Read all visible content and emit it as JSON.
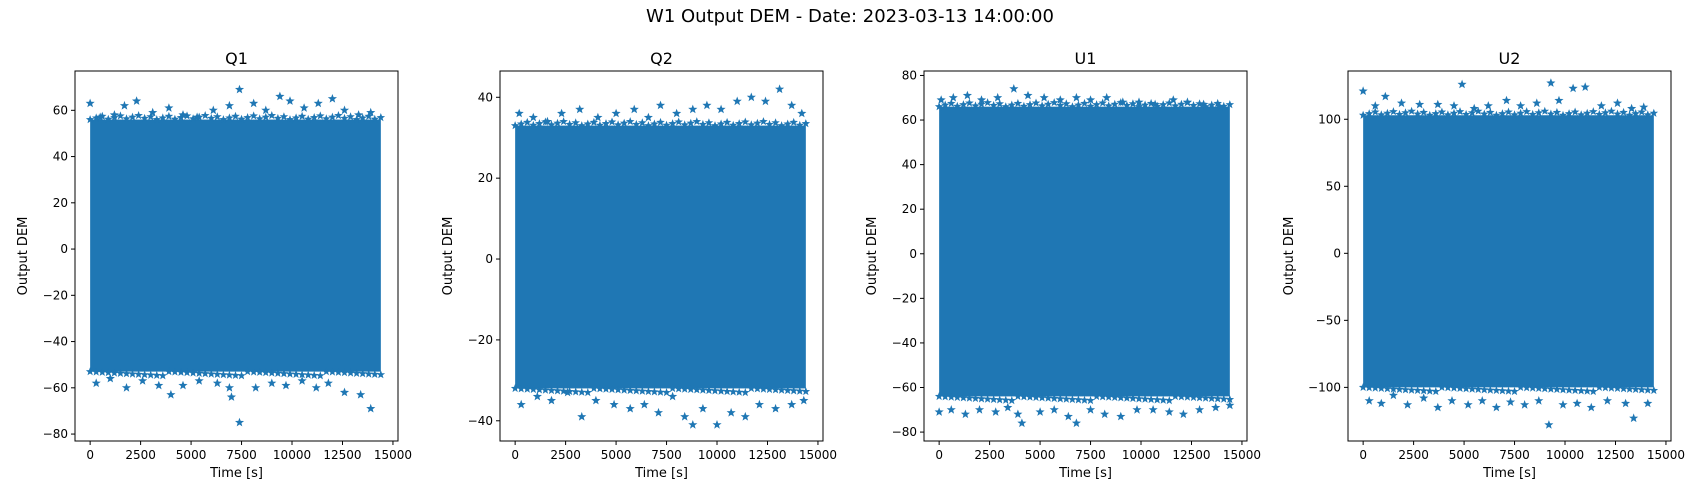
{
  "figure": {
    "title": "W1 Output DEM - Date: 2023-03-13 14:00:00"
  },
  "style": {
    "marker_color": "#1f77b4",
    "marker": "star"
  },
  "chart_data": [
    {
      "type": "scatter",
      "title": "Q1",
      "xlabel": "Time [s]",
      "ylabel": "Output DEM",
      "xlim": [
        -750,
        15250
      ],
      "ylim": [
        -83,
        77
      ],
      "xticks": [
        0,
        2500,
        5000,
        7500,
        10000,
        12500,
        15000
      ],
      "yticks": [
        -80,
        -60,
        -40,
        -20,
        0,
        20,
        40,
        60
      ],
      "time_range": [
        0,
        14400
      ],
      "band": {
        "upper": 56,
        "lower": -53
      },
      "grid": false,
      "outliers": [
        [
          0,
          63
        ],
        [
          500,
          57
        ],
        [
          1200,
          58
        ],
        [
          1700,
          62
        ],
        [
          2300,
          64
        ],
        [
          3100,
          59
        ],
        [
          3900,
          61
        ],
        [
          4600,
          58
        ],
        [
          5300,
          57
        ],
        [
          6100,
          60
        ],
        [
          6900,
          62
        ],
        [
          7400,
          69
        ],
        [
          8100,
          63
        ],
        [
          8700,
          60
        ],
        [
          9400,
          66
        ],
        [
          9900,
          64
        ],
        [
          10600,
          61
        ],
        [
          11300,
          63
        ],
        [
          12000,
          65
        ],
        [
          12600,
          60
        ],
        [
          13300,
          58
        ],
        [
          13900,
          59
        ],
        [
          300,
          -58
        ],
        [
          1000,
          -56
        ],
        [
          1800,
          -60
        ],
        [
          2600,
          -57
        ],
        [
          3400,
          -59
        ],
        [
          4000,
          -63
        ],
        [
          4600,
          -59
        ],
        [
          5400,
          -57
        ],
        [
          6300,
          -58
        ],
        [
          6900,
          -60
        ],
        [
          7000,
          -64
        ],
        [
          7400,
          -75
        ],
        [
          8200,
          -60
        ],
        [
          9000,
          -58
        ],
        [
          9700,
          -59
        ],
        [
          10500,
          -57
        ],
        [
          11200,
          -60
        ],
        [
          11800,
          -58
        ],
        [
          12600,
          -62
        ],
        [
          13400,
          -63
        ],
        [
          13900,
          -69
        ]
      ]
    },
    {
      "type": "scatter",
      "title": "Q2",
      "xlabel": "Time [s]",
      "ylabel": "Output DEM",
      "xlim": [
        -750,
        15250
      ],
      "ylim": [
        -45,
        46.5
      ],
      "xticks": [
        0,
        2500,
        5000,
        7500,
        10000,
        12500,
        15000
      ],
      "yticks": [
        -40,
        -20,
        0,
        20,
        40
      ],
      "time_range": [
        0,
        14400
      ],
      "band": {
        "upper": 33,
        "lower": -32
      },
      "grid": false,
      "outliers": [
        [
          200,
          36
        ],
        [
          900,
          35
        ],
        [
          1600,
          34
        ],
        [
          2300,
          36
        ],
        [
          3200,
          37
        ],
        [
          4100,
          35
        ],
        [
          5000,
          36
        ],
        [
          5900,
          37
        ],
        [
          6600,
          35
        ],
        [
          7200,
          38
        ],
        [
          8000,
          36
        ],
        [
          8800,
          37
        ],
        [
          9500,
          38
        ],
        [
          10200,
          37
        ],
        [
          11000,
          39
        ],
        [
          11700,
          40
        ],
        [
          12400,
          39
        ],
        [
          13100,
          42
        ],
        [
          13700,
          38
        ],
        [
          14200,
          36
        ],
        [
          300,
          -36
        ],
        [
          1100,
          -34
        ],
        [
          1800,
          -35
        ],
        [
          2600,
          -33
        ],
        [
          3300,
          -39
        ],
        [
          4000,
          -35
        ],
        [
          4900,
          -36
        ],
        [
          5700,
          -37
        ],
        [
          6400,
          -36
        ],
        [
          7100,
          -38
        ],
        [
          7800,
          -34
        ],
        [
          8400,
          -39
        ],
        [
          8800,
          -41
        ],
        [
          9300,
          -37
        ],
        [
          10000,
          -41
        ],
        [
          10700,
          -38
        ],
        [
          11400,
          -39
        ],
        [
          12100,
          -36
        ],
        [
          12900,
          -37
        ],
        [
          13700,
          -36
        ],
        [
          14300,
          -35
        ]
      ]
    },
    {
      "type": "scatter",
      "title": "U1",
      "xlabel": "Time [s]",
      "ylabel": "Output DEM",
      "xlim": [
        -750,
        15250
      ],
      "ylim": [
        -84,
        82
      ],
      "xticks": [
        0,
        2500,
        5000,
        7500,
        10000,
        12500,
        15000
      ],
      "yticks": [
        -80,
        -60,
        -40,
        -20,
        0,
        20,
        40,
        60,
        80
      ],
      "time_range": [
        0,
        14400
      ],
      "band": {
        "upper": 66,
        "lower": -64
      },
      "grid": false,
      "outliers": [
        [
          100,
          69
        ],
        [
          700,
          70
        ],
        [
          1400,
          71
        ],
        [
          2100,
          69
        ],
        [
          2900,
          70
        ],
        [
          3700,
          74
        ],
        [
          4400,
          71
        ],
        [
          5200,
          70
        ],
        [
          6000,
          69
        ],
        [
          6800,
          70
        ],
        [
          7500,
          69
        ],
        [
          8300,
          70
        ],
        [
          9100,
          68
        ],
        [
          9900,
          68
        ],
        [
          10700,
          67
        ],
        [
          11600,
          69
        ],
        [
          12300,
          68
        ],
        [
          13100,
          67
        ],
        [
          13900,
          66
        ],
        [
          0,
          -71
        ],
        [
          600,
          -70
        ],
        [
          1300,
          -72
        ],
        [
          2000,
          -70
        ],
        [
          2800,
          -71
        ],
        [
          3400,
          -69
        ],
        [
          3900,
          -72
        ],
        [
          4100,
          -76
        ],
        [
          5000,
          -71
        ],
        [
          5700,
          -70
        ],
        [
          6400,
          -73
        ],
        [
          6800,
          -76
        ],
        [
          7500,
          -70
        ],
        [
          8200,
          -72
        ],
        [
          9000,
          -73
        ],
        [
          9800,
          -70
        ],
        [
          10600,
          -70
        ],
        [
          11400,
          -71
        ],
        [
          12100,
          -72
        ],
        [
          12900,
          -70
        ],
        [
          13700,
          -69
        ],
        [
          14400,
          -68
        ]
      ]
    },
    {
      "type": "scatter",
      "title": "U2",
      "xlabel": "Time [s]",
      "ylabel": "Output DEM",
      "xlim": [
        -750,
        15250
      ],
      "ylim": [
        -140,
        136
      ],
      "xticks": [
        0,
        2500,
        5000,
        7500,
        10000,
        12500,
        15000
      ],
      "yticks": [
        -100,
        -50,
        0,
        50,
        100
      ],
      "time_range": [
        0,
        14400
      ],
      "band": {
        "upper": 103,
        "lower": -100
      },
      "grid": false,
      "outliers": [
        [
          0,
          121
        ],
        [
          600,
          110
        ],
        [
          1100,
          117
        ],
        [
          1900,
          112
        ],
        [
          2800,
          111
        ],
        [
          3700,
          111
        ],
        [
          4500,
          110
        ],
        [
          4900,
          126
        ],
        [
          5500,
          108
        ],
        [
          6200,
          110
        ],
        [
          7100,
          114
        ],
        [
          7800,
          110
        ],
        [
          8600,
          112
        ],
        [
          9300,
          127
        ],
        [
          9700,
          114
        ],
        [
          10400,
          123
        ],
        [
          11000,
          124
        ],
        [
          11800,
          110
        ],
        [
          12600,
          112
        ],
        [
          13300,
          108
        ],
        [
          13900,
          109
        ],
        [
          300,
          -110
        ],
        [
          900,
          -112
        ],
        [
          1500,
          -106
        ],
        [
          2200,
          -113
        ],
        [
          3000,
          -108
        ],
        [
          3700,
          -115
        ],
        [
          4400,
          -110
        ],
        [
          5200,
          -113
        ],
        [
          5900,
          -110
        ],
        [
          6600,
          -115
        ],
        [
          7300,
          -111
        ],
        [
          8000,
          -113
        ],
        [
          8700,
          -110
        ],
        [
          9200,
          -128
        ],
        [
          9900,
          -113
        ],
        [
          10600,
          -112
        ],
        [
          11300,
          -115
        ],
        [
          12100,
          -110
        ],
        [
          13000,
          -112
        ],
        [
          13400,
          -123
        ],
        [
          14100,
          -112
        ]
      ]
    }
  ]
}
